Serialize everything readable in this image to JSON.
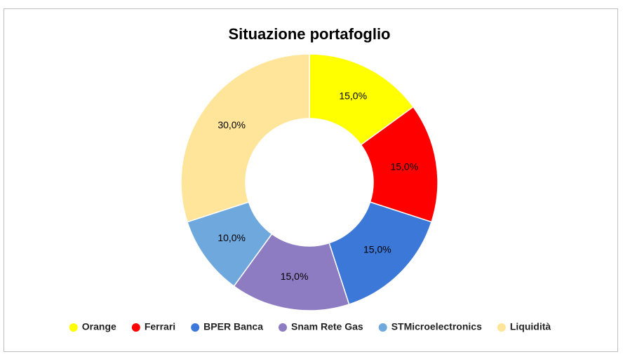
{
  "chart_data": {
    "type": "donut",
    "title": "Situazione portafoglio",
    "categories": [
      "Orange",
      "Ferrari",
      "BPER Banca",
      "Snam Rete Gas",
      "STMicroelectronics",
      "Liquidità"
    ],
    "values": [
      15,
      15,
      15,
      15,
      10,
      30
    ],
    "value_labels": [
      "15,0%",
      "15,0%",
      "15,0%",
      "15,0%",
      "10,0%",
      "30,0%"
    ],
    "colors": [
      "#ffff00",
      "#ff0000",
      "#3c78d8",
      "#8e7cc3",
      "#6fa8dc",
      "#ffe599"
    ],
    "legend": "bottom"
  }
}
